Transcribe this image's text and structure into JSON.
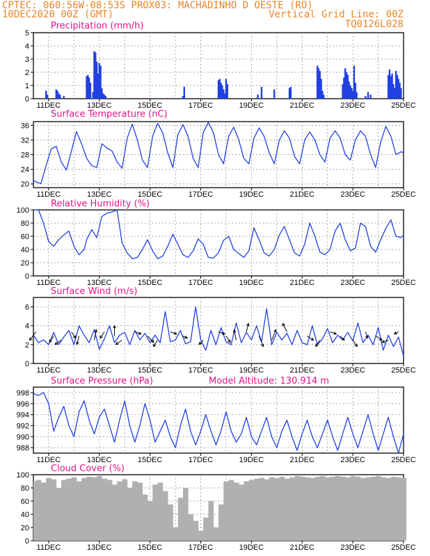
{
  "header": {
    "line1": "CPTEC:   060:56W-08:53S   PROX03: MACHADINHO D OESTE (RO)",
    "line2_left": "10DEC2020 00Z (GMT)",
    "line2_right": "Vertical Grid Line: 00Z",
    "line3_right": "TQ0126L028"
  },
  "colors": {
    "header": "#e8862a",
    "title": "#e0148a",
    "series": "#2040e0",
    "cloud": "#b0b0b0",
    "grid": "#888888"
  },
  "x_ticks": [
    "11DEC",
    "13DEC",
    "15DEC",
    "17DEC",
    "19DEC",
    "21DEC",
    "23DEC",
    "25DEC"
  ],
  "chart_data": [
    {
      "id": "precip",
      "type": "bar",
      "title": "Precipitation (mm/h)",
      "ylim": [
        0,
        5
      ],
      "yticks": [
        0,
        1,
        2,
        3,
        4,
        5
      ],
      "x_range_days": [
        10.4,
        25.0
      ],
      "x": [
        10.9,
        10.95,
        11.3,
        11.35,
        11.4,
        11.45,
        11.6,
        12.5,
        12.55,
        12.6,
        12.65,
        12.75,
        12.8,
        12.85,
        12.9,
        12.95,
        13.0,
        13.05,
        13.1,
        13.15,
        13.2,
        13.25,
        16.3,
        16.35,
        17.7,
        17.75,
        17.8,
        17.85,
        17.9,
        17.95,
        18.0,
        18.05,
        19.25,
        19.4,
        19.9,
        20.5,
        20.55,
        21.6,
        21.65,
        21.7,
        21.75,
        21.8,
        21.85,
        22.6,
        22.65,
        22.7,
        22.75,
        22.8,
        22.85,
        22.9,
        22.95,
        23.0,
        23.05,
        23.1,
        23.15,
        23.5,
        23.6,
        23.7,
        24.4,
        24.45,
        24.5,
        24.55,
        24.6,
        24.65,
        24.7,
        24.75,
        24.8,
        24.85,
        24.9
      ],
      "values": [
        0.6,
        0.3,
        0.7,
        0.6,
        0.4,
        0.3,
        0.2,
        1.7,
        1.8,
        1.6,
        1.2,
        0.5,
        3.6,
        3.5,
        2.8,
        1.9,
        2.7,
        2.5,
        0.8,
        0.4,
        0.3,
        0.2,
        0.2,
        0.9,
        1.4,
        1.5,
        1.2,
        1.0,
        0.7,
        0.4,
        1.5,
        1.1,
        0.3,
        0.9,
        0.7,
        0.8,
        0.9,
        2.5,
        2.3,
        2.1,
        1.5,
        0.6,
        0.3,
        1.1,
        1.6,
        2.3,
        2.0,
        1.8,
        1.3,
        1.0,
        0.8,
        0.6,
        2.5,
        1.2,
        0.5,
        0.2,
        0.5,
        0.3,
        1.8,
        2.2,
        1.7,
        1.9,
        1.1,
        0.8,
        2.1,
        1.8,
        1.5,
        1.2,
        0.8
      ]
    },
    {
      "id": "temp",
      "type": "line",
      "title": "Surface Temperature (nC)",
      "ylim": [
        19,
        37
      ],
      "yticks": [
        20,
        24,
        28,
        32,
        36
      ],
      "x": [
        10.4,
        10.5,
        10.7,
        10.9,
        11.1,
        11.3,
        11.5,
        11.7,
        11.9,
        12.1,
        12.3,
        12.5,
        12.7,
        12.9,
        13.1,
        13.3,
        13.5,
        13.7,
        13.9,
        14.1,
        14.3,
        14.5,
        14.7,
        14.9,
        15.1,
        15.3,
        15.5,
        15.7,
        15.9,
        16.1,
        16.3,
        16.5,
        16.7,
        16.9,
        17.1,
        17.3,
        17.5,
        17.7,
        17.9,
        18.1,
        18.3,
        18.5,
        18.7,
        18.9,
        19.1,
        19.3,
        19.5,
        19.7,
        19.9,
        20.1,
        20.3,
        20.5,
        20.7,
        20.9,
        21.1,
        21.3,
        21.5,
        21.7,
        21.9,
        22.1,
        22.3,
        22.5,
        22.7,
        22.9,
        23.1,
        23.3,
        23.5,
        23.7,
        23.9,
        24.1,
        24.3,
        24.5,
        24.7,
        24.9,
        25.0
      ],
      "values": [
        21,
        20.6,
        20.1,
        25,
        29.5,
        30.3,
        26,
        23.8,
        29,
        34.3,
        31,
        27,
        25,
        24.5,
        31,
        29.8,
        29,
        26,
        24.3,
        32.5,
        36.3,
        32,
        26.5,
        24.5,
        33,
        36.5,
        34,
        28.5,
        24.5,
        33.5,
        36.2,
        33,
        27,
        24.5,
        34,
        36.8,
        34,
        28,
        25.5,
        33,
        35.5,
        32,
        27,
        25.5,
        32.5,
        35.3,
        33,
        28.5,
        25.5,
        32,
        34.5,
        32.5,
        27.5,
        25.5,
        32,
        34.2,
        32,
        28,
        26,
        32.5,
        34.5,
        32.5,
        28,
        26.5,
        32,
        34.5,
        33,
        28,
        24.5,
        31.5,
        35.7,
        33,
        28,
        28.8,
        28.5
      ]
    },
    {
      "id": "rh",
      "type": "line",
      "title": "Relative Humidity (%)",
      "ylim": [
        0,
        100
      ],
      "yticks": [
        0,
        20,
        40,
        60,
        80,
        100
      ],
      "x": [
        10.4,
        10.6,
        10.8,
        11.0,
        11.2,
        11.4,
        11.6,
        11.8,
        12.0,
        12.2,
        12.4,
        12.5,
        12.7,
        12.9,
        13.1,
        13.3,
        13.5,
        13.7,
        13.9,
        14.1,
        14.3,
        14.5,
        14.7,
        14.9,
        15.1,
        15.3,
        15.5,
        15.7,
        15.9,
        16.1,
        16.3,
        16.5,
        16.7,
        16.9,
        17.1,
        17.3,
        17.5,
        17.7,
        17.9,
        18.1,
        18.3,
        18.5,
        18.7,
        18.9,
        19.1,
        19.3,
        19.5,
        19.7,
        19.9,
        20.1,
        20.3,
        20.5,
        20.7,
        20.9,
        21.1,
        21.3,
        21.5,
        21.7,
        21.9,
        22.1,
        22.3,
        22.5,
        22.7,
        22.9,
        23.1,
        23.3,
        23.5,
        23.7,
        23.9,
        24.1,
        24.3,
        24.5,
        24.7,
        24.9,
        25.0
      ],
      "values": [
        100,
        100,
        80,
        52,
        45,
        55,
        62,
        68,
        45,
        32,
        40,
        55,
        70,
        58,
        90,
        95,
        97,
        100,
        50,
        35,
        26,
        28,
        40,
        55,
        38,
        26,
        30,
        45,
        63,
        48,
        32,
        28,
        38,
        56,
        48,
        28,
        27,
        35,
        54,
        60,
        40,
        34,
        28,
        38,
        73,
        55,
        35,
        30,
        40,
        62,
        75,
        55,
        35,
        30,
        48,
        80,
        60,
        36,
        32,
        40,
        68,
        80,
        55,
        38,
        42,
        80,
        75,
        45,
        36,
        55,
        72,
        85,
        60,
        58,
        62
      ]
    },
    {
      "id": "wind",
      "type": "line",
      "title": "Surface Wind (m/s)",
      "ylim": [
        0,
        7
      ],
      "yticks": [
        0,
        2,
        4,
        6
      ],
      "x": [
        10.4,
        10.6,
        10.8,
        11.0,
        11.2,
        11.4,
        11.6,
        11.8,
        12.0,
        12.2,
        12.4,
        12.6,
        12.8,
        13.0,
        13.2,
        13.4,
        13.6,
        13.8,
        14.0,
        14.2,
        14.4,
        14.6,
        14.8,
        15.0,
        15.2,
        15.4,
        15.6,
        15.8,
        16.0,
        16.2,
        16.4,
        16.6,
        16.8,
        17.0,
        17.2,
        17.4,
        17.6,
        17.8,
        18.0,
        18.2,
        18.4,
        18.6,
        18.8,
        19.0,
        19.2,
        19.4,
        19.6,
        19.8,
        20.0,
        20.2,
        20.4,
        20.6,
        20.8,
        21.0,
        21.2,
        21.4,
        21.6,
        21.8,
        22.0,
        22.2,
        22.4,
        22.6,
        22.8,
        23.0,
        23.2,
        23.4,
        23.6,
        23.8,
        24.0,
        24.2,
        24.4,
        24.6,
        24.8,
        25.0
      ],
      "values": [
        3.0,
        2.2,
        2.5,
        2.0,
        3.3,
        2.0,
        2.8,
        3.5,
        2.0,
        4.0,
        3.0,
        2.2,
        3.6,
        1.5,
        2.6,
        4.0,
        2.2,
        3.0,
        3.3,
        2.0,
        3.5,
        2.5,
        3.2,
        2.2,
        3.0,
        2.2,
        5.5,
        2.3,
        2.5,
        3.5,
        2.1,
        2.3,
        6.0,
        2.5,
        1.4,
        3.5,
        2.0,
        3.8,
        2.3,
        2.0,
        4.3,
        2.2,
        3.3,
        2.5,
        4.0,
        2.3,
        5.8,
        2.0,
        3.3,
        2.5,
        3.2,
        2.0,
        3.5,
        2.2,
        2.0,
        4.0,
        2.0,
        2.6,
        3.7,
        2.2,
        3.0,
        2.5,
        3.3,
        2.4,
        4.3,
        2.2,
        3.0,
        2.0,
        3.8,
        1.4,
        3.0,
        1.8,
        2.8,
        0.8
      ],
      "arrows": [
        {
          "x": 10.5,
          "dx": -0.3,
          "dy": 0.4
        },
        {
          "x": 11.2,
          "dx": -0.2,
          "dy": 0.3
        },
        {
          "x": 11.5,
          "dx": -0.3,
          "dy": 0.2
        },
        {
          "x": 11.9,
          "dx": 0.2,
          "dy": 0.3
        },
        {
          "x": 12.2,
          "dx": -0.1,
          "dy": 0.4
        },
        {
          "x": 12.8,
          "dx": 0.1,
          "dy": -0.5
        },
        {
          "x": 13.2,
          "dx": -0.2,
          "dy": 0.3
        },
        {
          "x": 13.6,
          "dx": 0.0,
          "dy": -0.5
        },
        {
          "x": 13.9,
          "dx": -0.3,
          "dy": 0.2
        },
        {
          "x": 14.4,
          "dx": 0.3,
          "dy": 0.1
        },
        {
          "x": 14.9,
          "dx": 0.3,
          "dy": 0.3
        },
        {
          "x": 15.3,
          "dx": -0.2,
          "dy": 0.3
        },
        {
          "x": 15.8,
          "dx": 0.3,
          "dy": 0.1
        },
        {
          "x": 16.3,
          "dx": 0.2,
          "dy": 0.1
        },
        {
          "x": 17.1,
          "dx": -0.2,
          "dy": 0.2
        },
        {
          "x": 17.7,
          "dx": 0.3,
          "dy": 0.1
        },
        {
          "x": 18.0,
          "dx": 0.2,
          "dy": 0.3
        },
        {
          "x": 18.4,
          "dx": -0.1,
          "dy": -0.5
        },
        {
          "x": 18.8,
          "dx": 0.1,
          "dy": -0.4
        },
        {
          "x": 19.3,
          "dx": 0.2,
          "dy": 0.5
        },
        {
          "x": 19.8,
          "dx": 0.2,
          "dy": -0.5
        },
        {
          "x": 20.4,
          "dx": -0.2,
          "dy": -0.4
        },
        {
          "x": 21.2,
          "dx": 0.3,
          "dy": 0.2
        },
        {
          "x": 21.7,
          "dx": -0.2,
          "dy": 0.3
        },
        {
          "x": 22.1,
          "dx": 0.3,
          "dy": 0.1
        },
        {
          "x": 22.5,
          "dx": 0.2,
          "dy": 0.2
        },
        {
          "x": 23.0,
          "dx": 0.2,
          "dy": 0.3
        },
        {
          "x": 23.5,
          "dx": 0.1,
          "dy": 0.3
        },
        {
          "x": 23.9,
          "dx": 0.3,
          "dy": 0.2
        },
        {
          "x": 24.4,
          "dx": -0.3,
          "dy": 0.1
        },
        {
          "x": 24.8,
          "dx": -0.2,
          "dy": 0.1
        }
      ]
    },
    {
      "id": "pressure",
      "type": "line",
      "title": "Surface Pressure (hPa)",
      "annotation": "Model Altitude: 130.914 m",
      "ylim": [
        987,
        999
      ],
      "yticks": [
        988,
        990,
        992,
        994,
        996,
        998
      ],
      "x": [
        10.4,
        10.6,
        10.8,
        11.0,
        11.2,
        11.4,
        11.6,
        11.8,
        12.0,
        12.2,
        12.4,
        12.6,
        12.8,
        13.0,
        13.2,
        13.4,
        13.6,
        13.8,
        14.0,
        14.2,
        14.4,
        14.6,
        14.8,
        15.0,
        15.2,
        15.4,
        15.6,
        15.8,
        16.0,
        16.2,
        16.4,
        16.6,
        16.8,
        17.0,
        17.2,
        17.4,
        17.6,
        17.8,
        18.0,
        18.2,
        18.4,
        18.6,
        18.8,
        19.0,
        19.2,
        19.4,
        19.6,
        19.8,
        20.0,
        20.2,
        20.4,
        20.6,
        20.8,
        21.0,
        21.2,
        21.4,
        21.6,
        21.8,
        22.0,
        22.2,
        22.4,
        22.6,
        22.8,
        23.0,
        23.2,
        23.4,
        23.6,
        23.8,
        24.0,
        24.2,
        24.4,
        24.6,
        24.8,
        25.0
      ],
      "values": [
        997.8,
        997.5,
        998.0,
        996,
        991,
        993.5,
        995.5,
        992,
        990,
        994.5,
        996.5,
        993,
        990.5,
        993.5,
        995,
        992,
        989,
        993,
        996.5,
        992,
        989,
        992,
        996,
        993,
        989,
        991,
        993,
        990,
        988,
        992,
        995,
        991,
        988.5,
        991,
        994,
        991,
        988.5,
        991,
        994.5,
        991,
        989,
        990.5,
        993.5,
        990,
        988.5,
        991,
        993.5,
        990,
        988,
        991,
        993,
        990,
        987.5,
        990.5,
        993,
        990,
        988,
        990.5,
        993,
        990,
        987.5,
        990.5,
        993.5,
        990.5,
        988,
        991,
        994,
        990.5,
        987.5,
        990.5,
        993.5,
        990,
        987,
        990.5
      ]
    },
    {
      "id": "cloud",
      "type": "bar",
      "title": "Cloud Cover (%)",
      "ylim": [
        0,
        100
      ],
      "yticks": [
        0,
        20,
        40,
        60,
        80,
        100
      ],
      "x": [
        10.4,
        10.6,
        10.8,
        11.0,
        11.2,
        11.4,
        11.6,
        11.8,
        12.0,
        12.2,
        12.4,
        12.6,
        12.8,
        13.0,
        13.2,
        13.4,
        13.6,
        13.8,
        14.0,
        14.2,
        14.4,
        14.6,
        14.8,
        15.0,
        15.2,
        15.4,
        15.6,
        15.8,
        16.0,
        16.2,
        16.4,
        16.6,
        16.8,
        17.0,
        17.2,
        17.4,
        17.6,
        17.8,
        18.0,
        18.2,
        18.4,
        18.6,
        18.8,
        19.0,
        19.2,
        19.4,
        19.6,
        19.8,
        20.0,
        20.2,
        20.4,
        20.6,
        20.8,
        21.0,
        21.2,
        21.4,
        21.6,
        21.8,
        22.0,
        22.2,
        22.4,
        22.6,
        22.8,
        23.0,
        23.2,
        23.4,
        23.6,
        23.8,
        24.0,
        24.2,
        24.4,
        24.6,
        24.8,
        25.0
      ],
      "values": [
        90,
        92,
        88,
        95,
        93,
        80,
        92,
        94,
        96,
        90,
        95,
        97,
        96,
        98,
        94,
        92,
        85,
        90,
        93,
        80,
        90,
        88,
        70,
        60,
        85,
        88,
        75,
        55,
        20,
        65,
        80,
        40,
        30,
        15,
        35,
        60,
        20,
        55,
        90,
        92,
        88,
        85,
        90,
        92,
        94,
        95,
        93,
        96,
        95,
        97,
        94,
        96,
        98,
        97,
        96,
        95,
        97,
        98,
        96,
        97,
        98,
        97,
        96,
        98,
        97,
        95,
        96,
        97,
        98,
        96,
        95,
        97,
        96,
        95
      ]
    }
  ]
}
